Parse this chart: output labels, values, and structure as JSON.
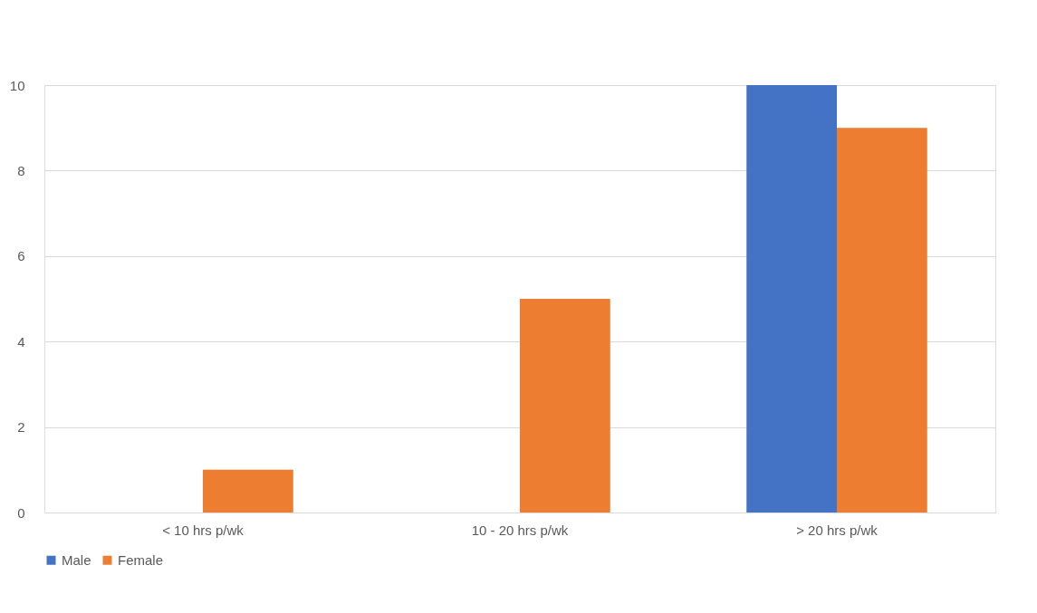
{
  "chart_data": {
    "type": "bar",
    "categories": [
      "< 10 hrs p/wk",
      "10 - 20 hrs p/wk",
      "> 20 hrs p/wk"
    ],
    "series": [
      {
        "name": "Male",
        "color": "#4472c4",
        "values": [
          0,
          0,
          10
        ]
      },
      {
        "name": "Female",
        "color": "#ed7d31",
        "values": [
          1,
          5,
          9
        ]
      }
    ],
    "ylim": [
      0,
      10
    ],
    "yticks": [
      0,
      2,
      4,
      6,
      8,
      10
    ],
    "grid": "y",
    "legend": "bottom"
  }
}
